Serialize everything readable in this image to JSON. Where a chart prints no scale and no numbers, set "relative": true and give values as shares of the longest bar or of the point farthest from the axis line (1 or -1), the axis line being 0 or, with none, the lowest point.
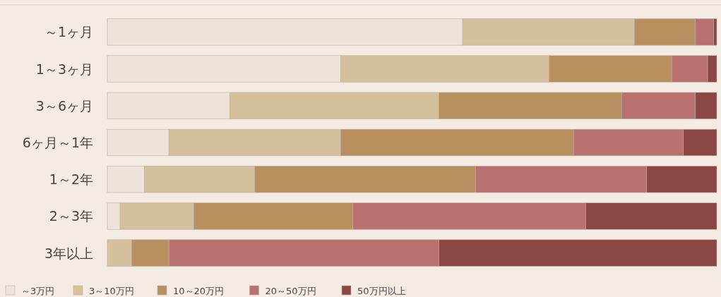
{
  "chart_data": {
    "type": "bar",
    "orientation": "horizontal",
    "stacked": true,
    "relative": true,
    "legend": "bottom left",
    "categories": [
      "～1ヶ月",
      "1～3ヶ月",
      "3～6ヶ月",
      "6ヶ月～1年",
      "1～2年",
      "2～3年",
      "3年以上"
    ],
    "series": [
      {
        "name": "～3万円",
        "color": "#ede3d8",
        "values": [
          0.583,
          0.383,
          0.201,
          0.101,
          0.061,
          0.021,
          0
        ]
      },
      {
        "name": "3～10万円",
        "color": "#d4c09a",
        "values": [
          0.282,
          0.342,
          0.343,
          0.282,
          0.181,
          0.121,
          0.04
        ]
      },
      {
        "name": "10～20万円",
        "color": "#b89060",
        "values": [
          0.1,
          0.201,
          0.3,
          0.382,
          0.362,
          0.261,
          0.061
        ]
      },
      {
        "name": "20～50万円",
        "color": "#b87070",
        "values": [
          0.03,
          0.059,
          0.121,
          0.18,
          0.281,
          0.382,
          0.443
        ]
      },
      {
        "name": "50万円以上",
        "color": "#8b4545",
        "values": [
          0.005,
          0.015,
          0.035,
          0.055,
          0.115,
          0.215,
          0.456
        ]
      }
    ]
  }
}
